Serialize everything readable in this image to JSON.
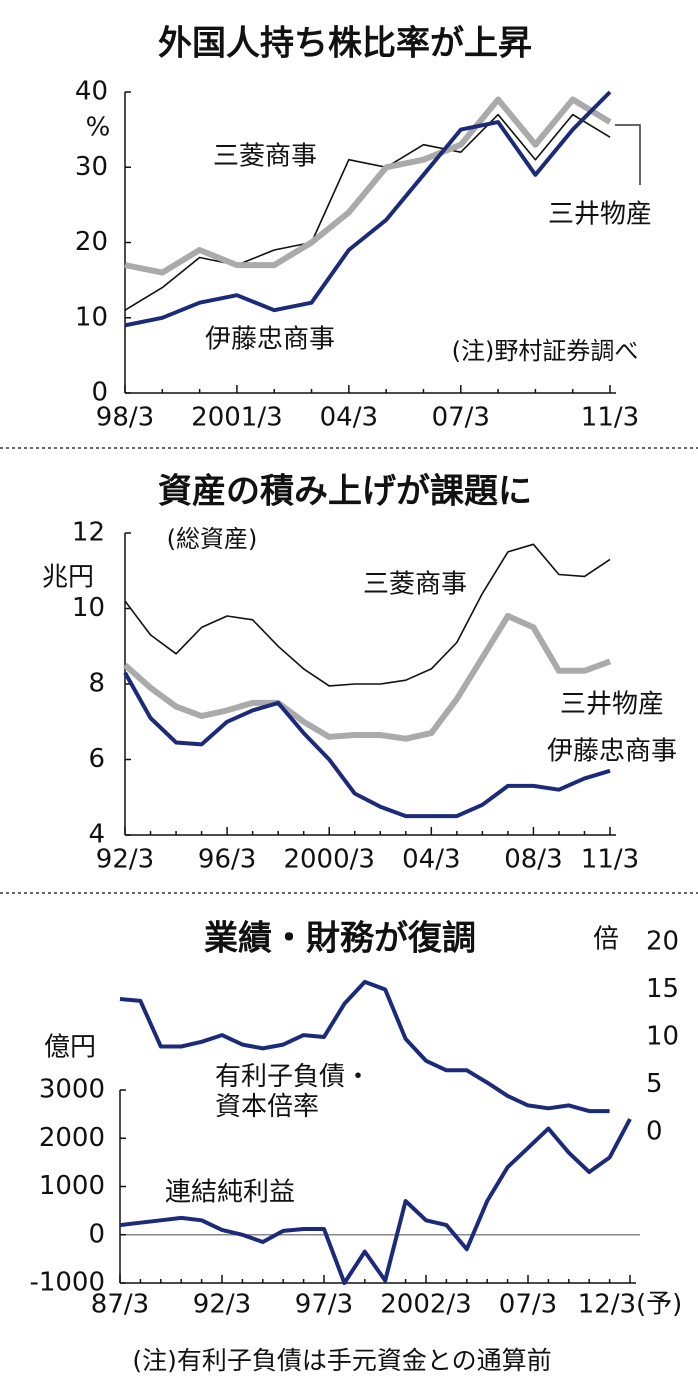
{
  "chart_data": [
    {
      "type": "line",
      "title": "外国人持ち株比率が上昇",
      "y_label": "%",
      "note": "(注)野村証券調べ",
      "categories": [
        "98/3",
        null,
        null,
        "2001/3",
        null,
        null,
        "04/3",
        null,
        null,
        "07/3",
        null,
        null,
        null,
        "11/3"
      ],
      "ylim": [
        0,
        40
      ],
      "yticks": [
        0,
        10,
        20,
        30,
        40
      ],
      "series": [
        {
          "name": "三菱商事",
          "color": "#111111",
          "values": [
            11,
            14,
            18,
            17,
            19,
            20,
            31,
            30,
            33,
            32,
            37,
            31,
            37,
            34
          ]
        },
        {
          "name": "三井物産",
          "color": "#aaaaaa",
          "values": [
            17,
            16,
            19,
            17,
            17,
            20,
            24,
            30,
            31,
            33,
            39,
            33,
            39,
            36
          ]
        },
        {
          "name": "伊藤忠商事",
          "color": "#1c2a7a",
          "values": [
            9,
            10,
            12,
            13,
            11,
            12,
            19,
            23,
            29,
            35,
            36,
            29,
            35,
            40
          ]
        }
      ]
    },
    {
      "type": "line",
      "title": "資産の積み上げが課題に",
      "subtitle": "(総資産)",
      "y_label": "兆円",
      "categories": [
        "92/3",
        null,
        null,
        null,
        "96/3",
        null,
        null,
        null,
        "2000/3",
        null,
        null,
        null,
        "04/3",
        null,
        null,
        null,
        "08/3",
        null,
        null,
        "11/3"
      ],
      "ylim": [
        4,
        12
      ],
      "yticks": [
        4,
        6,
        8,
        10,
        12
      ],
      "series": [
        {
          "name": "三菱商事",
          "color": "#111111",
          "values": [
            10.2,
            9.3,
            8.8,
            9.5,
            9.8,
            9.7,
            9.0,
            8.4,
            7.95,
            8.0,
            8.0,
            8.1,
            8.4,
            9.1,
            10.4,
            11.5,
            11.7,
            10.9,
            10.85,
            11.3
          ]
        },
        {
          "name": "三井物産",
          "color": "#aaaaaa",
          "values": [
            8.5,
            7.9,
            7.4,
            7.15,
            7.3,
            7.5,
            7.5,
            7.0,
            6.6,
            6.65,
            6.65,
            6.55,
            6.7,
            7.6,
            8.7,
            9.8,
            9.5,
            8.35,
            8.35,
            8.6
          ]
        },
        {
          "name": "伊藤忠商事",
          "color": "#1c2a7a",
          "values": [
            8.3,
            7.1,
            6.45,
            6.4,
            7.0,
            7.3,
            7.5,
            6.7,
            6.0,
            5.1,
            4.75,
            4.5,
            4.5,
            4.5,
            4.8,
            5.3,
            5.3,
            5.2,
            5.5,
            5.7
          ]
        }
      ]
    },
    {
      "type": "line",
      "title": "業績・財務が復調",
      "y_label": "億円",
      "y2_label": "倍",
      "note": "(注)有利子負債は手元資金との通算前",
      "categories": [
        "87/3",
        null,
        null,
        null,
        null,
        "92/3",
        null,
        null,
        null,
        null,
        "97/3",
        null,
        null,
        null,
        null,
        "2002/3",
        null,
        null,
        null,
        null,
        "07/3",
        null,
        null,
        null,
        null,
        "12/3(予)"
      ],
      "ylim": [
        -1000,
        3000
      ],
      "yticks": [
        -1000,
        0,
        1000,
        2000,
        3000
      ],
      "y2lim": [
        0,
        20
      ],
      "y2ticks": [
        0,
        5,
        10,
        15,
        20
      ],
      "series": [
        {
          "name": "有利子負債・資本倍率",
          "color": "#1c2a7a",
          "axis": "y2",
          "values": [
            14,
            13.8,
            9,
            9,
            9.5,
            10.2,
            9.2,
            8.8,
            9.2,
            10.2,
            10,
            13.5,
            15.8,
            15,
            9.8,
            7.5,
            6.5,
            6.5,
            5.2,
            3.8,
            2.8,
            2.5,
            2.8,
            2.2,
            2.2,
            null
          ]
        },
        {
          "name": "連結純利益",
          "color": "#1c2a7a",
          "values": [
            200,
            250,
            300,
            350,
            300,
            100,
            0,
            -150,
            80,
            120,
            120,
            -1000,
            -350,
            -950,
            700,
            300,
            200,
            -300,
            700,
            1400,
            1800,
            2200,
            1700,
            1300,
            1600,
            2400
          ]
        }
      ]
    }
  ]
}
